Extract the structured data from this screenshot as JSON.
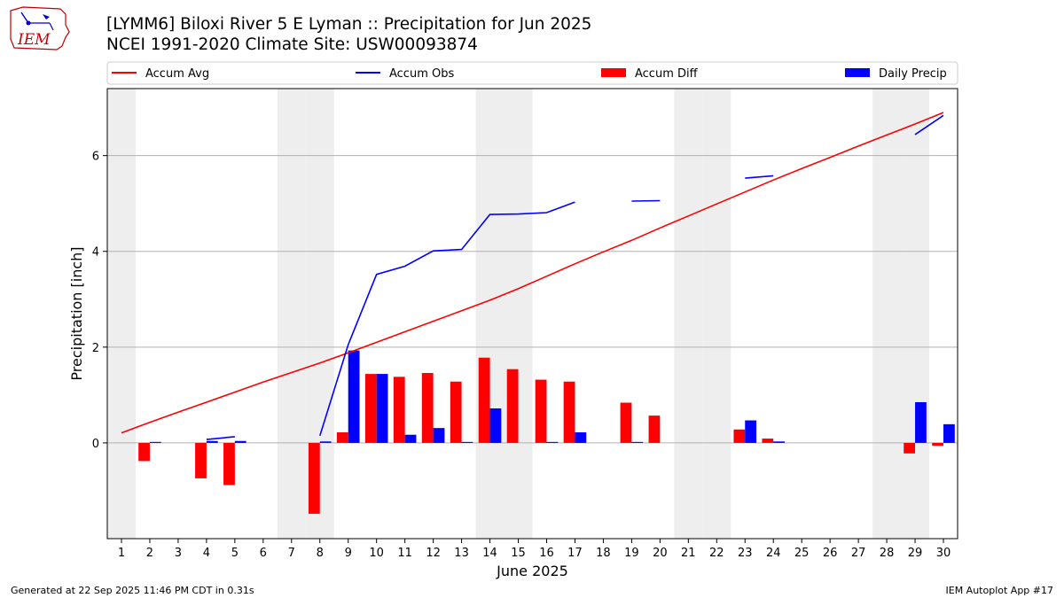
{
  "logo": {
    "text": "IEM"
  },
  "header": {
    "title": "[LYMM6] Biloxi River 5 E Lyman :: Precipitation for Jun 2025",
    "subtitle": "NCEI 1991-2020 Climate Site: USW00093874"
  },
  "footer": {
    "left": "Generated at 22 Sep 2025 11:46 PM CDT in 0.31s",
    "right": "IEM Autoplot App #17"
  },
  "colors": {
    "accum_avg": "#ff0000",
    "accum_obs": "#0000ff",
    "accum_diff": "#ff0000",
    "daily_precip": "#0000ff",
    "weekend_shade": "#eeeeee",
    "grid": "#b0b0b0"
  },
  "chart_data": {
    "type": "bar",
    "xlabel": "June 2025",
    "ylabel": "Precipitation [inch]",
    "ylim": [
      -2,
      7.4
    ],
    "yticks": [
      0,
      2,
      4,
      6
    ],
    "grid": "horizontal",
    "legend_placement": "top",
    "weekend_days": [
      1,
      7,
      8,
      14,
      15,
      21,
      22,
      28,
      29
    ],
    "categories": [
      "1",
      "2",
      "3",
      "4",
      "5",
      "6",
      "7",
      "8",
      "9",
      "10",
      "11",
      "12",
      "13",
      "14",
      "15",
      "16",
      "17",
      "18",
      "19",
      "20",
      "21",
      "22",
      "23",
      "24",
      "25",
      "26",
      "27",
      "28",
      "29",
      "30"
    ],
    "series": [
      {
        "name": "Accum Avg",
        "kind": "line",
        "values": [
          0.21,
          0.43,
          0.64,
          0.85,
          1.06,
          1.27,
          1.47,
          1.67,
          1.88,
          2.1,
          2.32,
          2.54,
          2.76,
          2.98,
          3.22,
          3.48,
          3.74,
          3.99,
          4.23,
          4.49,
          4.74,
          4.99,
          5.24,
          5.49,
          5.73,
          5.96,
          6.2,
          6.43,
          6.66,
          6.9
        ]
      },
      {
        "name": "Accum Obs",
        "kind": "line",
        "values": [
          null,
          null,
          null,
          0.07,
          0.13,
          null,
          null,
          0.15,
          2.05,
          3.52,
          3.69,
          4.01,
          4.04,
          4.77,
          4.78,
          4.81,
          5.03,
          null,
          5.05,
          5.06,
          null,
          null,
          5.53,
          5.58,
          null,
          null,
          null,
          null,
          6.44,
          6.84
        ]
      },
      {
        "name": "Accum Diff",
        "kind": "bar",
        "values": [
          null,
          -0.38,
          null,
          -0.74,
          -0.88,
          null,
          null,
          -1.48,
          0.22,
          1.44,
          1.38,
          1.46,
          1.28,
          1.78,
          1.54,
          1.32,
          1.28,
          null,
          0.84,
          0.57,
          null,
          null,
          0.28,
          0.09,
          null,
          null,
          null,
          null,
          -0.22,
          -0.06
        ]
      },
      {
        "name": "Daily Precip",
        "kind": "bar",
        "values": [
          null,
          0.02,
          null,
          0.04,
          0.04,
          null,
          null,
          0.03,
          1.93,
          1.44,
          0.17,
          0.31,
          0.02,
          0.72,
          null,
          0.02,
          0.22,
          null,
          0.02,
          null,
          null,
          null,
          0.47,
          0.03,
          null,
          null,
          null,
          null,
          0.85,
          0.39
        ]
      }
    ]
  }
}
